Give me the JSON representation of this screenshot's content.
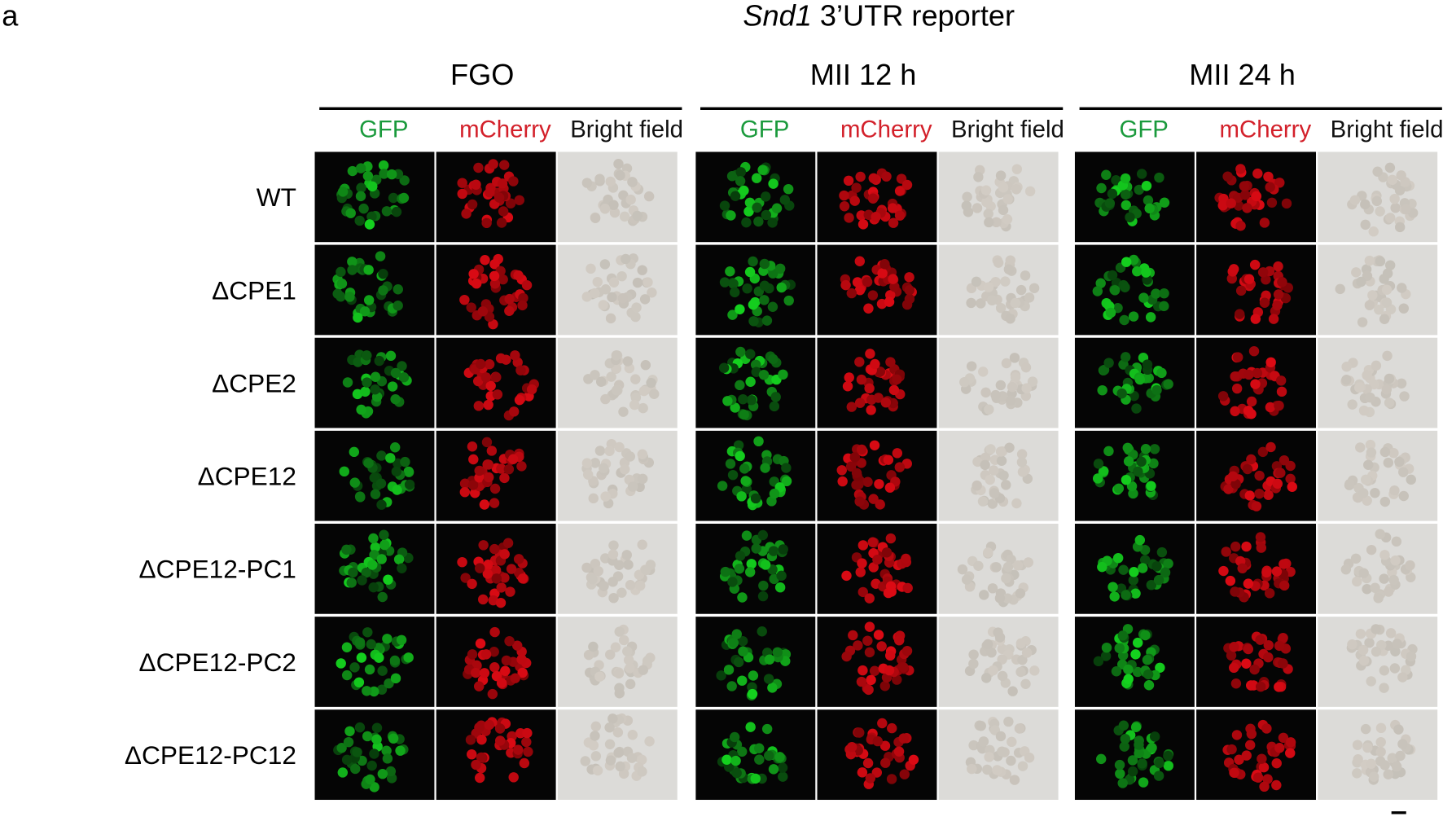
{
  "panel_label": "a",
  "title": {
    "gene": "Snd1",
    "rest": "3’UTR reporter"
  },
  "groups": [
    {
      "label": "FGO",
      "channels": [
        "GFP",
        "mCherry",
        "Bright field"
      ]
    },
    {
      "label": "MII 12 h",
      "channels": [
        "GFP",
        "mCherry",
        "Bright field"
      ]
    },
    {
      "label": "MII 24 h",
      "channels": [
        "GFP",
        "mCherry",
        "Bright field"
      ]
    }
  ],
  "rows": [
    "WT",
    "ΔCPE1",
    "ΔCPE2",
    "ΔCPE12",
    "ΔCPE12-PC1",
    "ΔCPE12-PC2",
    "ΔCPE12-PC12"
  ]
}
